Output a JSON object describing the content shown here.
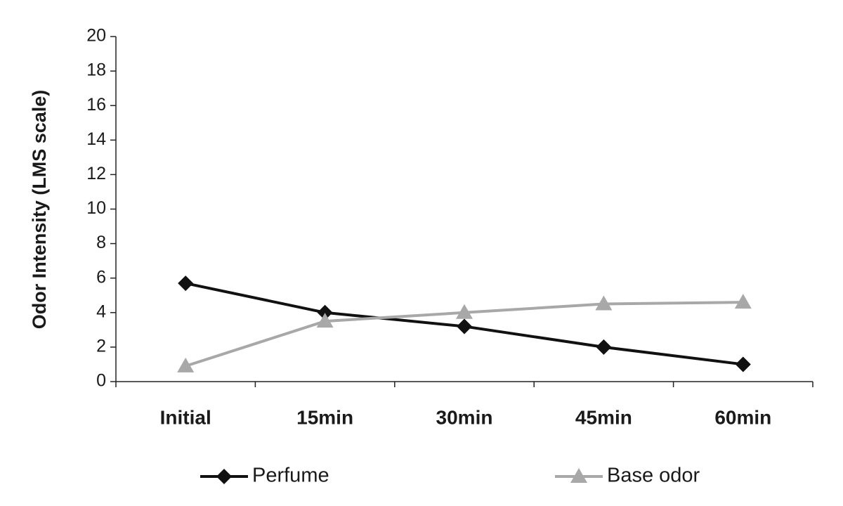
{
  "chart_data": {
    "type": "line",
    "y_label": "Odor Intensity (LMS scale)",
    "categories": [
      "Initial",
      "15min",
      "30min",
      "45min",
      "60min"
    ],
    "series": [
      {
        "name": "Perfume",
        "color": "#111111",
        "marker": "diamond",
        "values": [
          5.7,
          4.0,
          3.2,
          2.0,
          1.0
        ]
      },
      {
        "name": "Base odor",
        "color": "#a8a8a8",
        "marker": "triangle",
        "values": [
          0.9,
          3.5,
          4.0,
          4.5,
          4.6
        ]
      }
    ],
    "ylim": [
      0,
      20
    ],
    "yticks": [
      0,
      2,
      4,
      6,
      8,
      10,
      12,
      14,
      16,
      18,
      20
    ],
    "grid": false,
    "legend": "bottom"
  }
}
